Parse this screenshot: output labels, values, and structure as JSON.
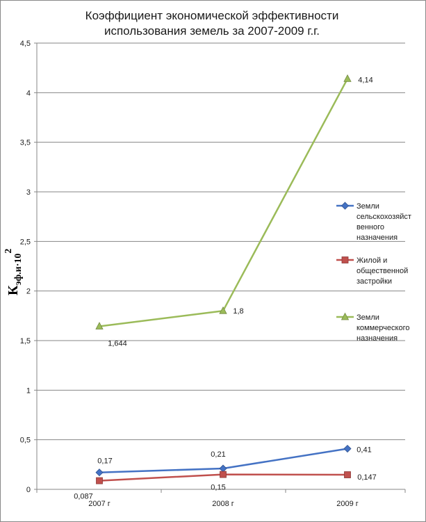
{
  "chart_data": {
    "type": "line",
    "title_lines": [
      "Коэффициент экономической эффективности",
      "использования земель за   2007-2009 г.г."
    ],
    "ylabel": {
      "main": "К",
      "subscript": "эф.и",
      "suffix": "·10",
      "superscript": "2"
    },
    "categories": [
      "2007 г",
      "2008 г",
      "2009 г"
    ],
    "ylim": [
      0,
      4.5
    ],
    "yticks": [
      0,
      0.5,
      1,
      1.5,
      2,
      2.5,
      3,
      3.5,
      4,
      4.5
    ],
    "ytick_labels": [
      "0",
      "0,5",
      "1",
      "1,5",
      "2",
      "2,5",
      "3",
      "3,5",
      "4",
      "4,5"
    ],
    "grid": "horizontal",
    "legend_position": "right",
    "series": [
      {
        "name": "Земли сельскохозяйственного назначения",
        "legend_lines": [
          "Земли",
          "сельскохозяйст",
          "венного",
          "назначения"
        ],
        "values": [
          0.17,
          0.21,
          0.41
        ],
        "labels": [
          "0,17",
          "0,21",
          "0,41"
        ],
        "color": "#4472C4",
        "marker": "diamond"
      },
      {
        "name": "Жилой и общественной застройки",
        "legend_lines": [
          "Жилой и",
          "общественной",
          "застройки"
        ],
        "values": [
          0.087,
          0.15,
          0.147
        ],
        "labels": [
          "0,087",
          "0,15",
          "0,147"
        ],
        "color": "#C0504D",
        "marker": "square"
      },
      {
        "name": "Земли коммерческого назначения",
        "legend_lines": [
          "Земли",
          "коммерческого",
          "назначения"
        ],
        "values": [
          1.644,
          1.8,
          4.14
        ],
        "labels": [
          "1,644",
          "1,8",
          "4,14"
        ],
        "color": "#9BBB59",
        "marker": "triangle"
      }
    ]
  }
}
